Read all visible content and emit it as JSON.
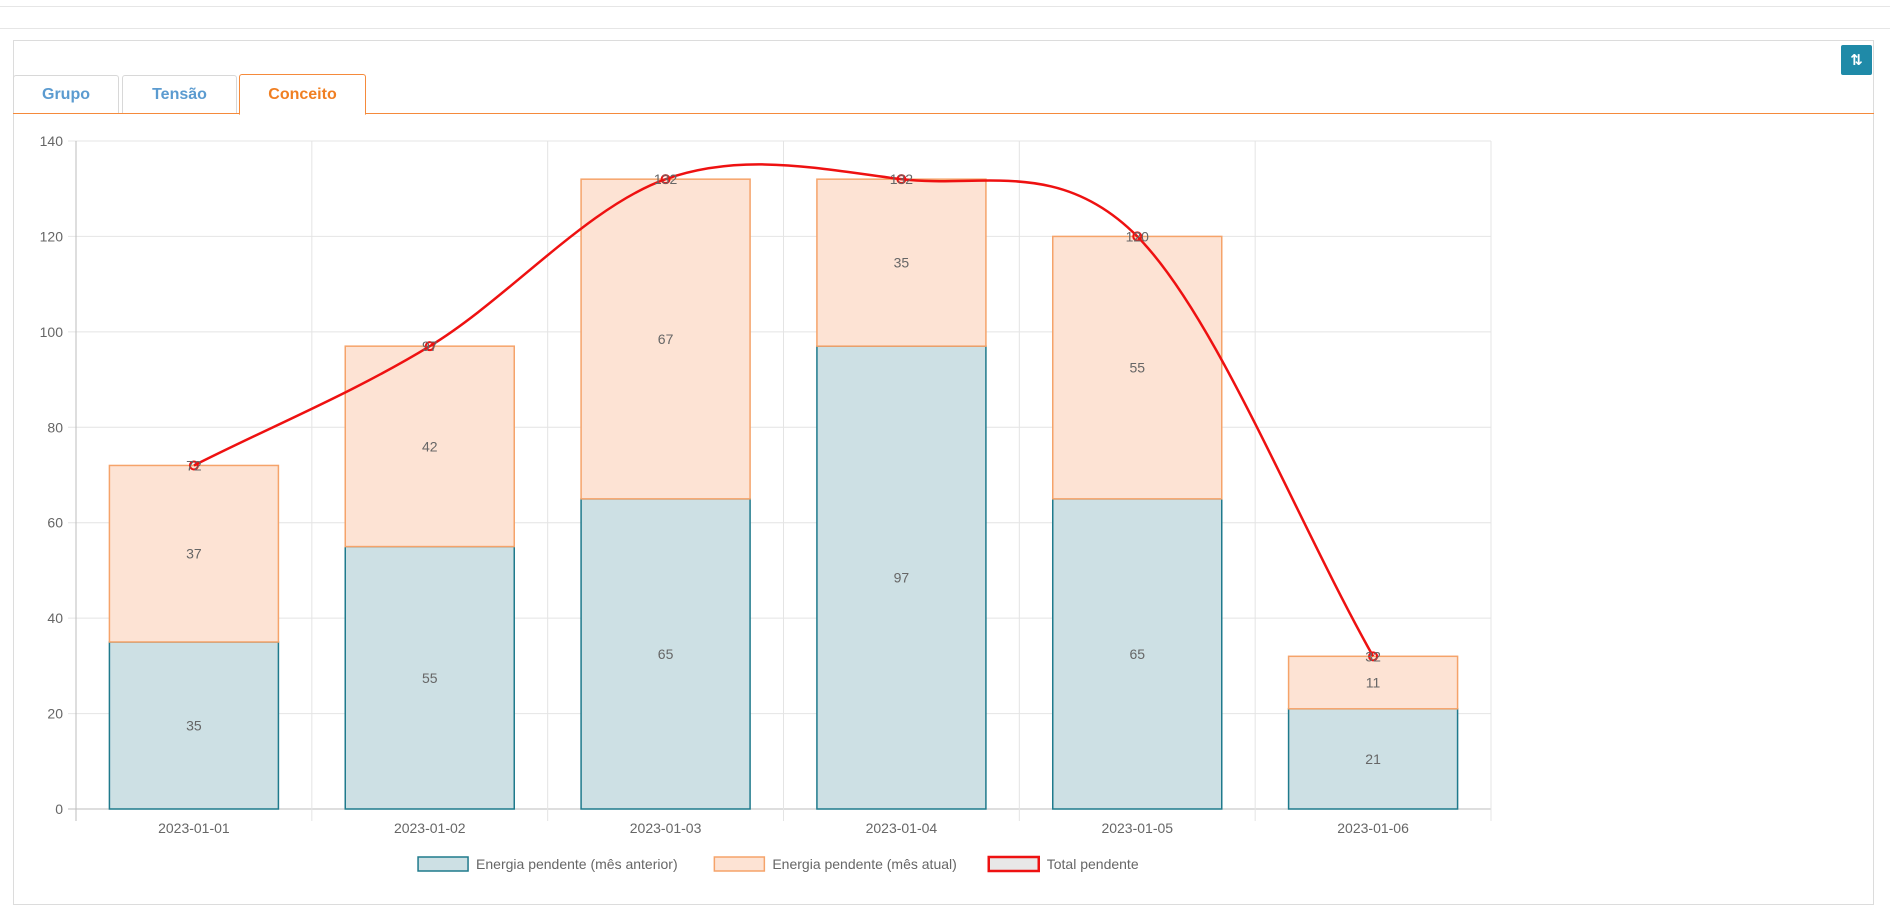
{
  "tabs": [
    {
      "label": "Grupo",
      "active": false
    },
    {
      "label": "Tensão",
      "active": false
    },
    {
      "label": "Conceito",
      "active": true
    }
  ],
  "toolbar": {
    "toggle_icon": "swap-vertical-icon",
    "toggle_glyph": "⇅"
  },
  "chart_data": {
    "type": "bar",
    "stacked": true,
    "categories": [
      "2023-01-01",
      "2023-01-02",
      "2023-01-03",
      "2023-01-04",
      "2023-01-05",
      "2023-01-06"
    ],
    "series": [
      {
        "name": "Energia pendente (mês anterior)",
        "type": "bar",
        "values": [
          35,
          55,
          65,
          97,
          65,
          21
        ],
        "color": "#cde0e4",
        "border": "#1f7a8c"
      },
      {
        "name": "Energia pendente (mês atual)",
        "type": "bar",
        "values": [
          37,
          42,
          67,
          35,
          55,
          11
        ],
        "color": "#fde3d4",
        "border": "#f5a36a"
      },
      {
        "name": "Total pendente",
        "type": "line",
        "values": [
          72,
          97,
          132,
          132,
          120,
          32
        ],
        "color": "#ee1111",
        "legend_fill": "#e8e8e8"
      }
    ],
    "yticks": [
      "0",
      "20",
      "40",
      "60",
      "80",
      "100",
      "120",
      "140"
    ],
    "ylim": [
      0,
      140
    ],
    "grid": true,
    "legend_position": "bottom"
  }
}
